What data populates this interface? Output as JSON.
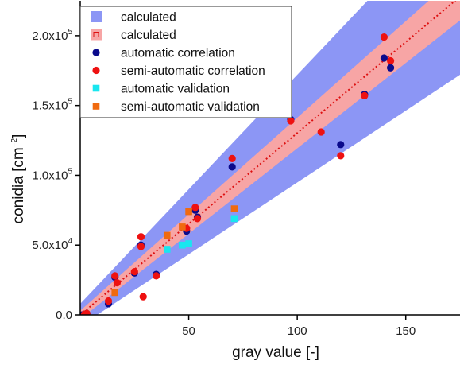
{
  "chart_data": {
    "type": "scatter",
    "xlabel": "gray value [-]",
    "ylabel": "conidia [cm",
    "ylabel_sup": "−2",
    "ylabel_end": "]",
    "xlim": [
      0,
      175
    ],
    "ylim": [
      0,
      225000
    ],
    "x_ticks": [
      {
        "value": 50,
        "label": "50"
      },
      {
        "value": 100,
        "label": "100"
      },
      {
        "value": 150,
        "label": "150"
      }
    ],
    "y_ticks": [
      {
        "value": 0,
        "label": "0.0"
      },
      {
        "value": 50000,
        "label": "5.0x10",
        "exp": "4"
      },
      {
        "value": 100000,
        "label": "1.0x10",
        "exp": "5"
      },
      {
        "value": 150000,
        "label": "1.5x10",
        "exp": "5"
      },
      {
        "value": 200000,
        "label": "2.0x10",
        "exp": "5"
      }
    ],
    "bands": [
      {
        "name": "calculated",
        "color": "#8c96f5",
        "x": [
          0,
          175
        ],
        "lower": [
          -8000,
          172000
        ],
        "upper": [
          8000,
          295000
        ]
      },
      {
        "name": "calculated",
        "color": "#f7a5a5",
        "x": [
          0,
          175
        ],
        "lower": [
          -3000,
          211000
        ],
        "upper": [
          3000,
          245000
        ]
      }
    ],
    "fit_line": {
      "x": [
        0,
        175
      ],
      "y": [
        0,
        228000
      ],
      "color": "#dd1111"
    },
    "series": [
      {
        "name": "automatic correlation",
        "color": "#0a0a8c",
        "marker": "circle",
        "points": [
          [
            1,
            0
          ],
          [
            2,
            500
          ],
          [
            3,
            1000
          ],
          [
            13,
            8000
          ],
          [
            16,
            27000
          ],
          [
            25,
            30000
          ],
          [
            28,
            50000
          ],
          [
            35,
            29000
          ],
          [
            49,
            60000
          ],
          [
            53,
            75000
          ],
          [
            54,
            70000
          ],
          [
            70,
            106000
          ],
          [
            97,
            140000
          ],
          [
            120,
            122000
          ],
          [
            131,
            158000
          ],
          [
            140,
            184000
          ],
          [
            143,
            177000
          ]
        ]
      },
      {
        "name": "semi-automatic correlation",
        "color": "#ee1111",
        "marker": "circle",
        "points": [
          [
            2,
            500
          ],
          [
            3,
            1000
          ],
          [
            13,
            10000
          ],
          [
            16,
            28000
          ],
          [
            17,
            23000
          ],
          [
            25,
            31000
          ],
          [
            28,
            56000
          ],
          [
            28,
            49000
          ],
          [
            29,
            13000
          ],
          [
            35,
            28000
          ],
          [
            49,
            62000
          ],
          [
            53,
            77000
          ],
          [
            54,
            69000
          ],
          [
            70,
            112000
          ],
          [
            97,
            139000
          ],
          [
            111,
            131000
          ],
          [
            120,
            114000
          ],
          [
            131,
            157000
          ],
          [
            140,
            199000
          ],
          [
            143,
            182000
          ]
        ]
      },
      {
        "name": "automatic validation",
        "color": "#19e6ef",
        "marker": "square",
        "points": [
          [
            40,
            47000
          ],
          [
            47,
            50000
          ],
          [
            50,
            51000
          ],
          [
            71,
            69000
          ]
        ]
      },
      {
        "name": "semi-automatic validation",
        "color": "#f06a10",
        "marker": "square",
        "points": [
          [
            16,
            16000
          ],
          [
            40,
            57000
          ],
          [
            47,
            63000
          ],
          [
            50,
            74000
          ],
          [
            71,
            76000
          ]
        ]
      }
    ]
  }
}
